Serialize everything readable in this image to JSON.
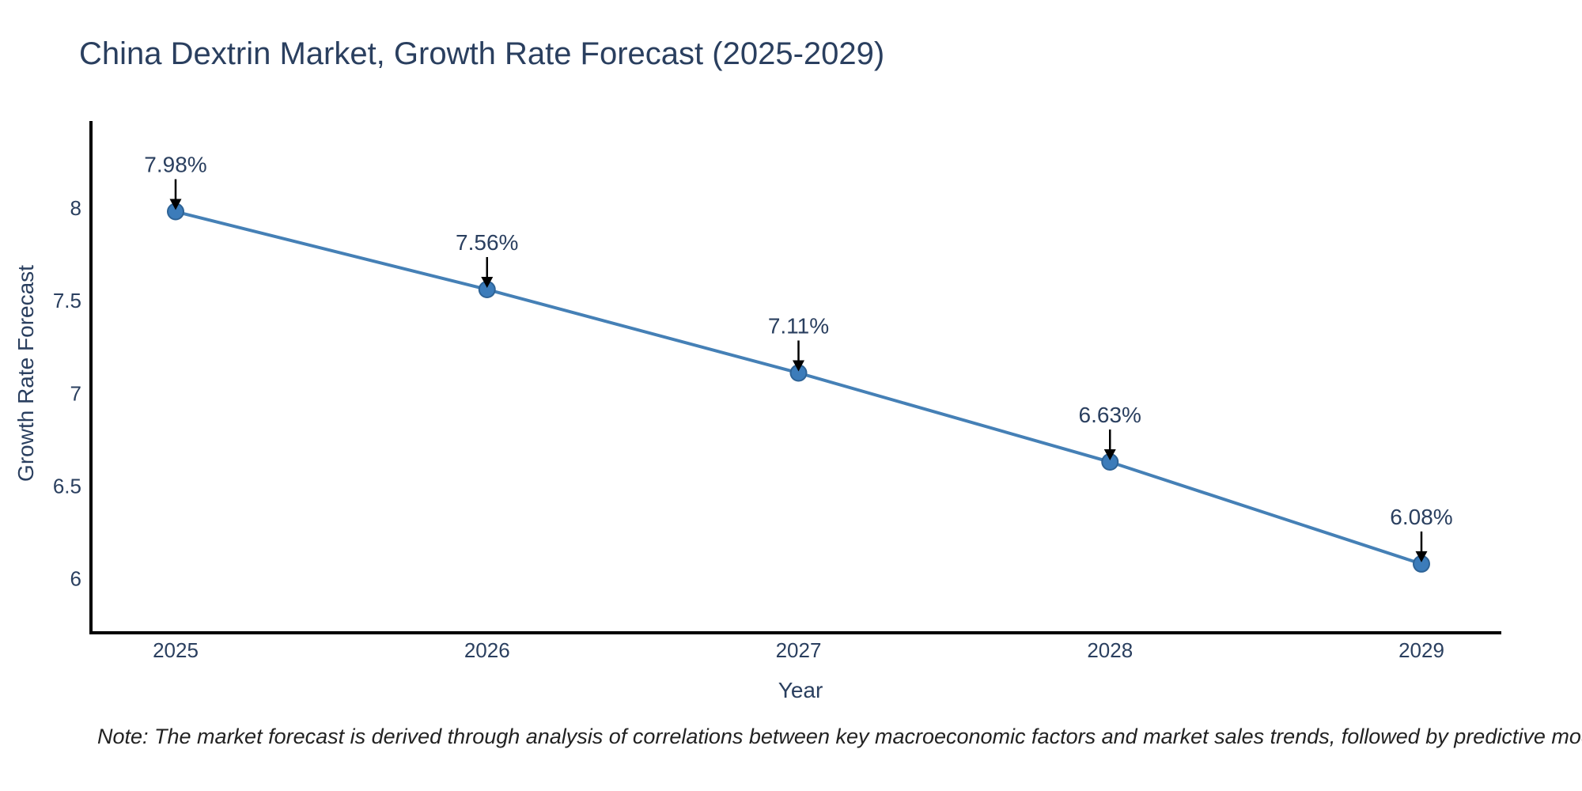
{
  "title": "China Dextrin Market, Growth Rate Forecast (2025-2029)",
  "note": "Note: The market forecast is derived through analysis of correlations between key macroeconomic factors and market sales trends, followed by predictive modeling to project future sales",
  "chart_data": {
    "type": "line",
    "title": "China Dextrin Market, Growth Rate Forecast (2025-2029)",
    "xlabel": "Year",
    "ylabel": "Growth Rate Forecast",
    "categories": [
      "2025",
      "2026",
      "2027",
      "2028",
      "2029"
    ],
    "series": [
      {
        "name": "Growth Rate Forecast",
        "values": [
          7.98,
          7.56,
          7.11,
          6.63,
          6.08
        ]
      }
    ],
    "point_labels": [
      "7.98%",
      "7.56%",
      "7.11%",
      "6.63%",
      "6.08%"
    ],
    "yticks": [
      "8",
      "7.5",
      "7",
      "6.5",
      "6"
    ],
    "ytick_values": [
      8,
      7.5,
      7,
      6.5,
      6
    ],
    "ylim": [
      5.7,
      8.46
    ],
    "grid": false,
    "legend": "none",
    "annotations": "arrow-to-point",
    "colors": {
      "line": "#4580b6",
      "marker": "#3c7cba",
      "marker_edge": "#2e6396",
      "axis": "#000000",
      "text": "#2a3f5f",
      "arrow": "#000000",
      "note_text": "#222222",
      "background": "#ffffff"
    }
  }
}
